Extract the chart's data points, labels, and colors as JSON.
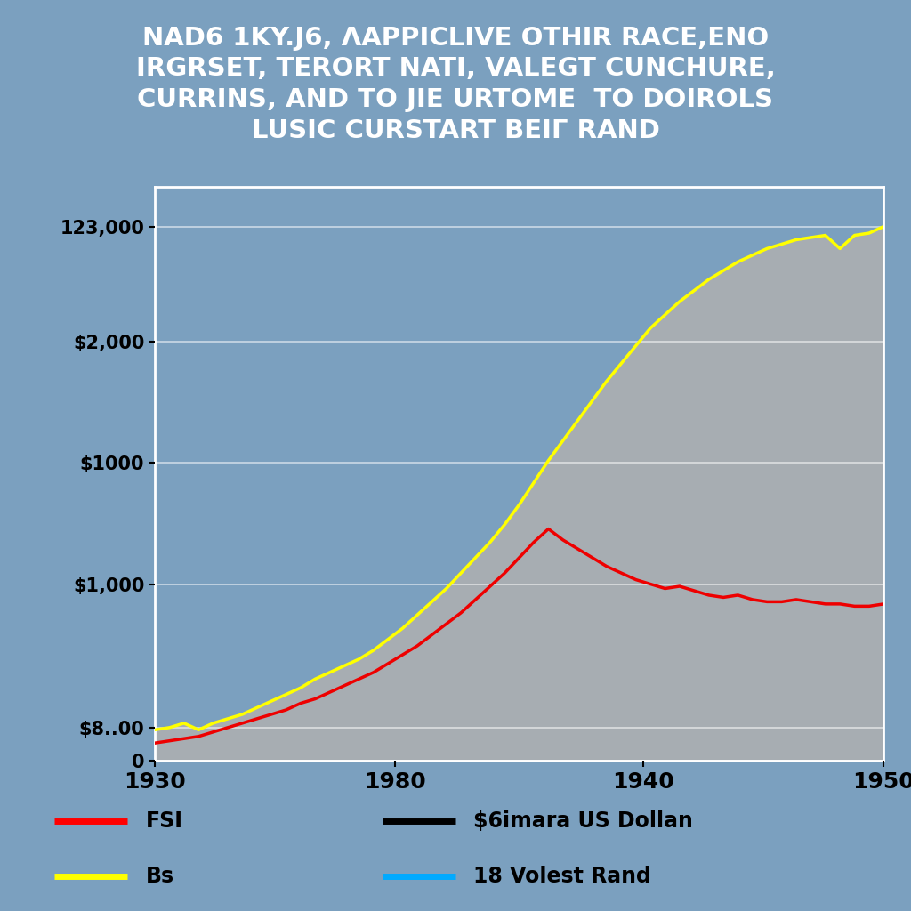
{
  "title_lines": [
    "NAD6 1KY.J6, ΛAPPICLIVE OTHIR RACE,ENO",
    "IRGRSET, TERORT NATI, VALEGT CUNCHURE,",
    "CURRINS, AND TO JIE URTOME  TO DOIROLS",
    "LUSIC CURSTART BEIΓ RAND"
  ],
  "title_bg": "#1c1c2e",
  "title_color": "#ffffff",
  "plot_bg": "#7ba0bf",
  "figure_bg": "#7ba0bf",
  "red_line_x": [
    0,
    2,
    4,
    6,
    8,
    10,
    12,
    14,
    16,
    18,
    20,
    22,
    24,
    26,
    28,
    30,
    32,
    34,
    36,
    38,
    40,
    42,
    44,
    46,
    48,
    50,
    52,
    54,
    56,
    58,
    60,
    62,
    64,
    66,
    68,
    70,
    72,
    74,
    76,
    78,
    80,
    82,
    84,
    86,
    88,
    90,
    92,
    94,
    96,
    98,
    100
  ],
  "red_line_y": [
    8,
    9,
    10,
    11,
    13,
    15,
    17,
    19,
    21,
    23,
    26,
    28,
    31,
    34,
    37,
    40,
    44,
    48,
    52,
    57,
    62,
    67,
    73,
    79,
    85,
    92,
    99,
    105,
    100,
    96,
    92,
    88,
    85,
    82,
    80,
    78,
    79,
    77,
    75,
    74,
    75,
    73,
    72,
    72,
    73,
    72,
    71,
    71,
    70,
    70,
    71
  ],
  "yellow_line_x": [
    0,
    2,
    4,
    6,
    8,
    10,
    12,
    14,
    16,
    18,
    20,
    22,
    24,
    26,
    28,
    30,
    32,
    34,
    36,
    38,
    40,
    42,
    44,
    46,
    48,
    50,
    52,
    54,
    56,
    58,
    60,
    62,
    64,
    66,
    68,
    70,
    72,
    74,
    76,
    78,
    80,
    82,
    84,
    86,
    88,
    90,
    92,
    94,
    96,
    98,
    100
  ],
  "yellow_line_y": [
    14,
    15,
    17,
    14,
    17,
    19,
    21,
    24,
    27,
    30,
    33,
    37,
    40,
    43,
    46,
    50,
    55,
    60,
    66,
    72,
    78,
    85,
    92,
    99,
    107,
    116,
    126,
    136,
    145,
    154,
    163,
    172,
    180,
    188,
    196,
    202,
    208,
    213,
    218,
    222,
    226,
    229,
    232,
    234,
    236,
    237,
    238,
    232,
    238,
    239,
    242
  ],
  "x_tick_labels": [
    "1930",
    "1980",
    "1940",
    "1950"
  ],
  "x_tick_pos": [
    0,
    33,
    67,
    100
  ],
  "ytick_labels": [
    "123,000",
    "$2,000",
    "$1000",
    "$1,000",
    "$8..00",
    "0"
  ],
  "ytick_positions": [
    242,
    190,
    135,
    80,
    15,
    0
  ],
  "fill_color": "#b0b0b0",
  "fill_alpha": 0.85,
  "grid_color": "#ffffff",
  "grid_alpha": 0.6,
  "line_red_color": "#ee0000",
  "line_yellow_color": "#ffff00",
  "axis_color": "#ffffff",
  "legend_items": [
    {
      "label": "FSI",
      "color": "#ff0000"
    },
    {
      "label": "$6imara US Dollan",
      "color": "#000000"
    },
    {
      "label": "Bs",
      "color": "#ffff00"
    },
    {
      "label": "18 Volest Rand",
      "color": "#00aaff"
    }
  ]
}
